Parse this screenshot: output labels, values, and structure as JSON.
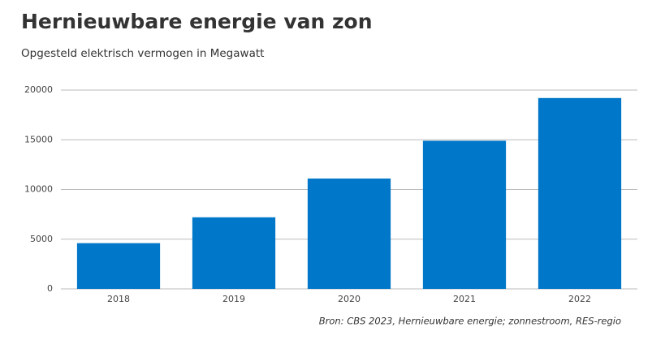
{
  "chart_data": {
    "type": "bar",
    "title": "Hernieuwbare energie van zon",
    "subtitle": "Opgesteld elektrisch vermogen in Megawatt",
    "source": "Bron: CBS 2023, Hernieuwbare energie; zonnestroom, RES-regio",
    "categories": [
      "2018",
      "2019",
      "2020",
      "2021",
      "2022"
    ],
    "values": [
      4600,
      7200,
      11100,
      14900,
      19200
    ],
    "color": "#0077c8",
    "ylim": [
      0,
      20000
    ],
    "yticks": [
      0,
      5000,
      10000,
      15000,
      20000
    ],
    "grid": true
  }
}
